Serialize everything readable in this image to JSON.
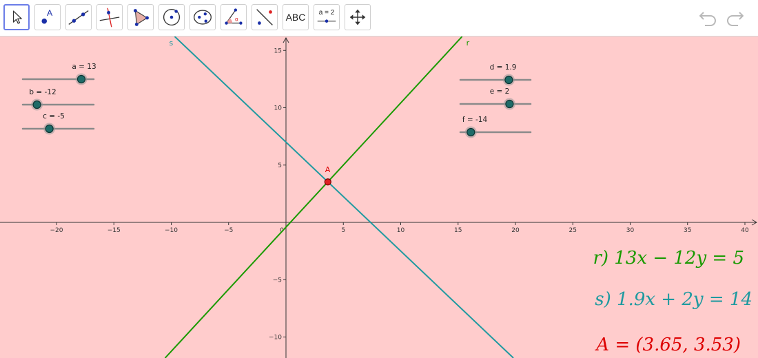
{
  "toolbar": {
    "tools": [
      {
        "name": "move-tool",
        "icon": "arrow-cursor-icon"
      },
      {
        "name": "point-tool",
        "icon": "point-icon",
        "label": "A"
      },
      {
        "name": "line-tool",
        "icon": "line-through-points-icon"
      },
      {
        "name": "perpendicular-line-tool",
        "icon": "perpendicular-line-icon"
      },
      {
        "name": "polygon-tool",
        "icon": "polygon-icon"
      },
      {
        "name": "circle-tool",
        "icon": "circle-center-point-icon"
      },
      {
        "name": "ellipse-tool",
        "icon": "ellipse-icon"
      },
      {
        "name": "angle-tool",
        "icon": "angle-icon",
        "label": "α"
      },
      {
        "name": "reflect-tool",
        "icon": "reflect-about-line-icon"
      },
      {
        "name": "text-tool",
        "icon": "text-icon",
        "label": "ABC"
      },
      {
        "name": "slider-tool",
        "icon": "slider-icon",
        "label": "a = 2"
      },
      {
        "name": "move-graphics-tool",
        "icon": "move-graphics-view-icon"
      }
    ],
    "undo_icon": "undo-icon",
    "redo_icon": "redo-icon"
  },
  "graphics": {
    "background": "#ffcccc",
    "x_ticks": [
      "−20",
      "−15",
      "−10",
      "−5",
      "0",
      "5",
      "10",
      "15",
      "20",
      "25",
      "30",
      "35",
      "40"
    ],
    "y_ticks": [
      "15",
      "10",
      "5",
      "−5",
      "−10"
    ],
    "sliders": [
      {
        "label": "a = 13",
        "min": -20,
        "max": 20,
        "value": 13
      },
      {
        "label": "b = -12",
        "min": -20,
        "max": 20,
        "value": -12
      },
      {
        "label": "c = -5",
        "min": -20,
        "max": 20,
        "value": -5
      },
      {
        "label": "d = 1.9",
        "min": -5,
        "max": 5,
        "value": 1.9
      },
      {
        "label": "e = 2",
        "min": -5,
        "max": 5,
        "value": 2
      },
      {
        "label": "f = -14",
        "min": -20,
        "max": 20,
        "value": -14
      }
    ],
    "lines": [
      {
        "name": "r",
        "a": 13,
        "b": -12,
        "c": 5,
        "color": "#1a9a00"
      },
      {
        "name": "s",
        "a": 1.9,
        "b": 2,
        "c": 14,
        "color": "#1f9aa0"
      }
    ],
    "point": {
      "label": "A",
      "x": 3.65,
      "y": 3.53,
      "color": "#dd0000"
    }
  },
  "algebra": {
    "eq_r": "r) 13x − 12y = 5",
    "eq_s": "s) 1.9x + 2y = 14",
    "eq_A": "A = (3.65, 3.53)",
    "colors": {
      "r": "#1a9a00",
      "s": "#1f9aa0",
      "A": "#dd0000"
    }
  }
}
